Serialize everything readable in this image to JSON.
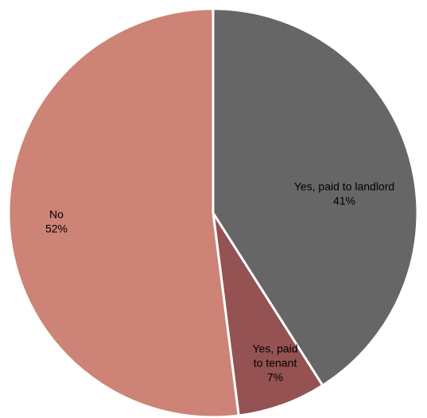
{
  "chart_data": {
    "type": "pie",
    "title": "",
    "slices": [
      {
        "name_lines": [
          "Yes, paid to landlord"
        ],
        "value": 41,
        "percent_label": "41%",
        "color": "#666666"
      },
      {
        "name_lines": [
          "Yes, paid",
          "to tenant"
        ],
        "value": 7,
        "percent_label": "7%",
        "color": "#955252"
      },
      {
        "name_lines": [
          "No"
        ],
        "value": 52,
        "percent_label": "52%",
        "color": "#cd8375"
      }
    ],
    "start": "12 o'clock",
    "direction": "clockwise",
    "slice_border_color": "#ffffff",
    "legend": "none",
    "data_labels": "inside slices"
  }
}
